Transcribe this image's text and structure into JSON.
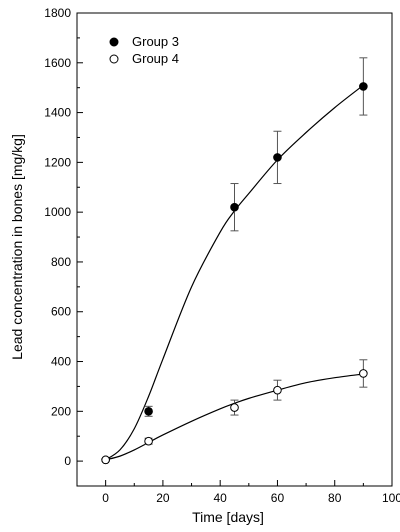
{
  "chart_data": {
    "type": "scatter",
    "xlabel": "Time [days]",
    "ylabel": "Lead concentration in bones [mg/kg]",
    "xlim": [
      -10,
      100
    ],
    "ylim": [
      -100,
      1800
    ],
    "xticks": [
      0,
      20,
      40,
      60,
      80,
      100
    ],
    "yticks": [
      0,
      200,
      400,
      600,
      800,
      1000,
      1200,
      1400,
      1600,
      1800
    ],
    "grid": false,
    "legend_position": "top-left",
    "series": [
      {
        "name": "Group 3",
        "marker": "filled-circle",
        "color": "#000000",
        "x": [
          0,
          15,
          45,
          60,
          90
        ],
        "y": [
          5,
          200,
          1020,
          1220,
          1505
        ],
        "error": [
          0,
          20,
          95,
          105,
          115
        ],
        "fit_curve": {
          "x": [
            0,
            5,
            10,
            15,
            20,
            30,
            40,
            45,
            50,
            60,
            70,
            80,
            90
          ],
          "y": [
            5,
            45,
            130,
            260,
            410,
            700,
            920,
            1005,
            1075,
            1210,
            1320,
            1420,
            1510
          ]
        }
      },
      {
        "name": "Group 4",
        "marker": "open-circle",
        "color": "#000000",
        "x": [
          0,
          15,
          45,
          60,
          90
        ],
        "y": [
          5,
          80,
          215,
          285,
          352
        ],
        "error": [
          0,
          12,
          30,
          40,
          55
        ],
        "fit_curve": {
          "x": [
            0,
            5,
            10,
            15,
            20,
            30,
            40,
            45,
            50,
            60,
            70,
            80,
            90
          ],
          "y": [
            5,
            20,
            45,
            75,
            105,
            160,
            210,
            232,
            252,
            285,
            315,
            335,
            350
          ]
        }
      }
    ]
  }
}
